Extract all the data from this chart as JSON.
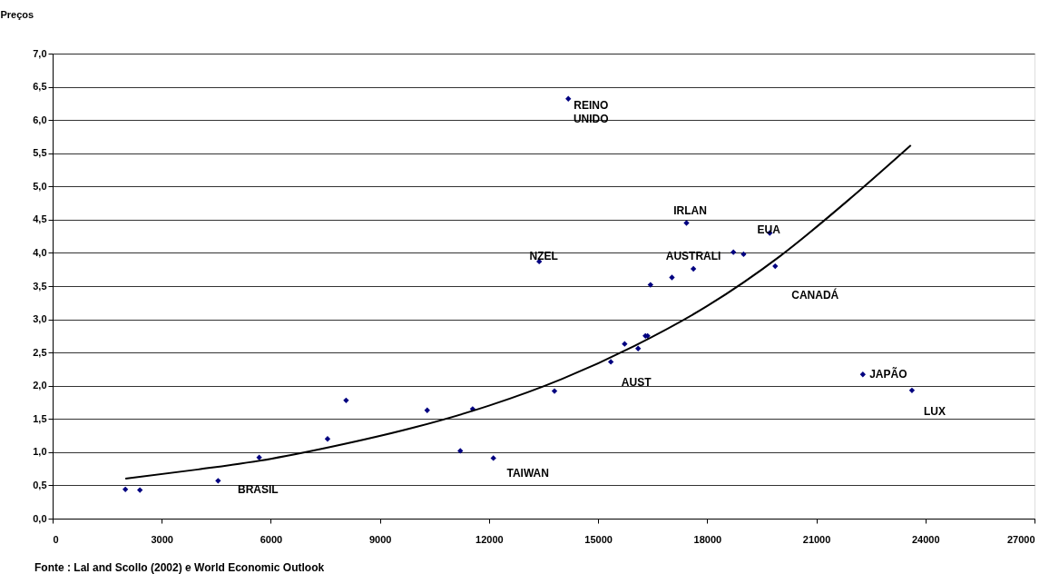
{
  "chart_data": {
    "type": "scatter",
    "ylabel": "Preços",
    "xlim": [
      0,
      27000
    ],
    "xticks": [
      0,
      3000,
      6000,
      9000,
      12000,
      15000,
      18000,
      21000,
      24000,
      27000
    ],
    "ylim": [
      0,
      7
    ],
    "yticks": [
      {
        "value": 0,
        "label": "0,0"
      },
      {
        "value": 0.5,
        "label": "0,5"
      },
      {
        "value": 1,
        "label": "1,0"
      },
      {
        "value": 1.5,
        "label": "1,5"
      },
      {
        "value": 2,
        "label": "2,0"
      },
      {
        "value": 2.5,
        "label": "2,5"
      },
      {
        "value": 3,
        "label": "3,0"
      },
      {
        "value": 3.5,
        "label": "3,5"
      },
      {
        "value": 4,
        "label": "4,0"
      },
      {
        "value": 4.5,
        "label": "4,5"
      },
      {
        "value": 5,
        "label": "5,0"
      },
      {
        "value": 5.5,
        "label": "5,5"
      },
      {
        "value": 6,
        "label": "6,0"
      },
      {
        "value": 6.5,
        "label": "6,5"
      },
      {
        "value": 7,
        "label": "7,0"
      }
    ],
    "grid": "y",
    "marker": "diamond",
    "series": [
      {
        "color": "#000080",
        "x": [
          2000,
          2400,
          4550,
          5680,
          7560,
          8070,
          10300,
          11210,
          11550,
          12120,
          13800,
          15350,
          15730,
          16100,
          16300,
          16360,
          16440,
          17030,
          17430,
          17620,
          18720,
          19000,
          19720,
          19870,
          13380,
          14180,
          22280,
          23630
        ],
        "values": [
          0.44,
          0.43,
          0.57,
          0.92,
          1.2,
          1.78,
          1.63,
          1.02,
          1.65,
          0.91,
          1.92,
          2.36,
          2.63,
          2.56,
          2.75,
          2.75,
          3.52,
          3.63,
          4.45,
          3.76,
          4.01,
          3.98,
          4.3,
          3.8,
          3.87,
          6.32,
          2.17,
          1.93
        ]
      },
      {
        "type": "line",
        "color": "#000000",
        "line_style": "solid",
        "marker": "none",
        "x": [
          2000,
          4000,
          6000,
          8000,
          10000,
          12000,
          14000,
          16000,
          18000,
          20000,
          22000,
          23600
        ],
        "values": [
          0.6,
          0.74,
          0.9,
          1.12,
          1.38,
          1.7,
          2.1,
          2.6,
          3.2,
          3.95,
          4.85,
          5.62
        ]
      }
    ],
    "annotations": [
      {
        "text": "REINO UNIDO",
        "x": 14180,
        "y": 6.32
      },
      {
        "text": "IRLAN",
        "x": 17430,
        "y": 4.45
      },
      {
        "text": "EUA",
        "x": 19720,
        "y": 4.3
      },
      {
        "text": "NZEL",
        "x": 13380,
        "y": 3.87
      },
      {
        "text": "AUSTRALI",
        "x": 17620,
        "y": 3.76
      },
      {
        "text": "CANADÁ",
        "x": 19870,
        "y": 3.8
      },
      {
        "text": "AUST",
        "x": 15350,
        "y": 2.36
      },
      {
        "text": "JAPÃO",
        "x": 22280,
        "y": 2.17
      },
      {
        "text": "LUX",
        "x": 23630,
        "y": 1.93
      },
      {
        "text": "TAIWAN",
        "x": 12120,
        "y": 0.91
      },
      {
        "text": "BRASIL",
        "x": 4550,
        "y": 0.57
      },
      "Fonte : Lal and Scollo (2002) e World Economic Outlook"
    ]
  }
}
